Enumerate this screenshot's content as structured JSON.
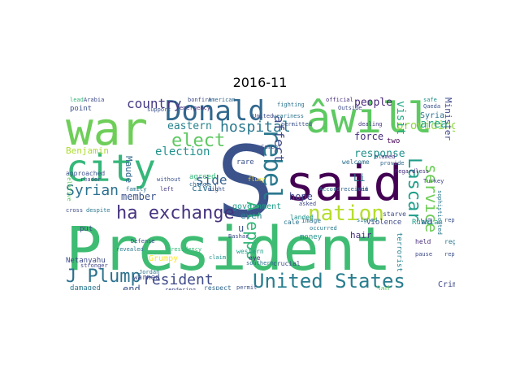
{
  "title": "2016-11",
  "words": [
    {
      "text": "President",
      "color": "#3fbc73"
    },
    {
      "text": "S",
      "color": "#3b528b"
    },
    {
      "text": "said",
      "color": "#440154"
    },
    {
      "text": "war",
      "color": "#6ece58"
    },
    {
      "text": "âwill",
      "color": "#5ec962"
    },
    {
      "text": "city",
      "color": "#35b779"
    },
    {
      "text": "Donald",
      "color": "#31688e"
    },
    {
      "text": "rebel",
      "color": "#2a788e"
    },
    {
      "text": "nation",
      "color": "#b5de2b"
    },
    {
      "text": "ha exchange",
      "color": "#46327e"
    },
    {
      "text": "United States",
      "color": "#287d8e"
    },
    {
      "text": "J Plump",
      "color": "#2c728e"
    },
    {
      "text": "resident",
      "color": "#3e4a89"
    },
    {
      "text": "hospital",
      "color": "#2a788e"
    },
    {
      "text": "Lascar",
      "color": "#1f9e89"
    },
    {
      "text": "service",
      "color": "#6ece58"
    },
    {
      "text": "Aleppo",
      "color": "#35b779"
    },
    {
      "text": "affect",
      "color": "#3e4a89"
    },
    {
      "text": "elect",
      "color": "#5ec962"
    },
    {
      "text": "country",
      "color": "#443983"
    },
    {
      "text": "Syrian",
      "color": "#2c728e"
    },
    {
      "text": "eastern",
      "color": "#26828e"
    },
    {
      "text": "election",
      "color": "#21918c"
    },
    {
      "text": "member",
      "color": "#3b528b"
    },
    {
      "text": "people",
      "color": "#482878"
    },
    {
      "text": "providing",
      "color": "#8fd744"
    },
    {
      "text": "visit",
      "color": "#22a884"
    },
    {
      "text": "response",
      "color": "#21918c"
    },
    {
      "text": "force",
      "color": "#472d7b"
    },
    {
      "text": "side",
      "color": "#355f8d"
    },
    {
      "text": "area",
      "color": "#20a486"
    },
    {
      "text": "Syria",
      "color": "#2c728e"
    },
    {
      "text": "Minister",
      "color": "#3e4a89"
    },
    {
      "text": "Benjamin",
      "color": "#addc30"
    },
    {
      "text": "Maude",
      "color": "#31688e"
    },
    {
      "text": "government",
      "color": "#1f9e89"
    },
    {
      "text": "hope",
      "color": "#414487"
    },
    {
      "text": "even",
      "color": "#26828e"
    },
    {
      "text": "wa",
      "color": "#3b528b"
    },
    {
      "text": "Crime",
      "color": "#3e4a89"
    },
    {
      "text": "brutal",
      "color": "#443983"
    },
    {
      "text": "Netanyahu",
      "color": "#3e4a89"
    },
    {
      "text": "Grumpy",
      "color": "#fde725"
    },
    {
      "text": "damaged",
      "color": "#2a788e"
    },
    {
      "text": "end",
      "color": "#3b528b"
    },
    {
      "text": "warned",
      "color": "#3e4a89"
    },
    {
      "text": "civil",
      "color": "#2c728e"
    },
    {
      "text": "agreed",
      "color": "#35b779"
    },
    {
      "text": "hair",
      "color": "#46327e"
    },
    {
      "text": "terrorist",
      "color": "#26828e"
    },
    {
      "text": "Russian",
      "color": "#1f9e89"
    },
    {
      "text": "violence",
      "color": "#3e4a89"
    },
    {
      "text": "image",
      "color": "#2c728e"
    },
    {
      "text": "landed",
      "color": "#21918c"
    },
    {
      "text": "rare",
      "color": "#3b528b"
    },
    {
      "text": "held",
      "color": "#472d7b"
    },
    {
      "text": "region",
      "color": "#2a788e"
    },
    {
      "text": "Sad",
      "color": "#5ec962"
    },
    {
      "text": "money",
      "color": "#21918c"
    },
    {
      "text": "Li",
      "color": "#2a788e"
    },
    {
      "text": "u",
      "color": "#3b528b"
    },
    {
      "text": "point",
      "color": "#3b528b"
    },
    {
      "text": "lead",
      "color": "#35b779"
    },
    {
      "text": "Arabia",
      "color": "#3e4a89"
    },
    {
      "text": "official",
      "color": "#472d7b"
    },
    {
      "text": "safe",
      "color": "#21918c"
    },
    {
      "text": "Qaeda",
      "color": "#3b528b"
    },
    {
      "text": "Turkey",
      "color": "#414487"
    },
    {
      "text": "fighting",
      "color": "#2c728e"
    },
    {
      "text": "Cement",
      "color": "#3e4a89"
    },
    {
      "text": "starve",
      "color": "#3e4a89"
    },
    {
      "text": "received",
      "color": "#31688e"
    },
    {
      "text": "Accord",
      "color": "#2a788e"
    },
    {
      "text": "blamed",
      "color": "#443983"
    },
    {
      "text": "Defense",
      "color": "#3b528b"
    },
    {
      "text": "Jordan",
      "color": "#2a788e"
    },
    {
      "text": "western",
      "color": "#1f9e89"
    },
    {
      "text": "southern",
      "color": "#2c728e"
    },
    {
      "text": "crucial",
      "color": "#3e4a89"
    },
    {
      "text": "eye",
      "color": "#472d7b"
    },
    {
      "text": "claim",
      "color": "#21918c"
    },
    {
      "text": "respect",
      "color": "#31688e"
    },
    {
      "text": "permit",
      "color": "#3b528b"
    },
    {
      "text": "rendering",
      "color": "#3e4a89"
    },
    {
      "text": "revealed",
      "color": "#2a788e"
    },
    {
      "text": "presidency",
      "color": "#35b779"
    },
    {
      "text": "stronger",
      "color": "#414487"
    },
    {
      "text": "put",
      "color": "#3e4a89"
    },
    {
      "text": "might",
      "color": "#3b528b"
    },
    {
      "text": "left",
      "color": "#443983"
    },
    {
      "text": "family",
      "color": "#2c728e"
    },
    {
      "text": "reader",
      "color": "#3e4a89"
    },
    {
      "text": "approached",
      "color": "#3b528b"
    },
    {
      "text": "relative",
      "color": "#5ec962"
    },
    {
      "text": "cross",
      "color": "#3e4a89"
    },
    {
      "text": "despite",
      "color": "#2a788e"
    },
    {
      "text": "without",
      "color": "#3b528b"
    },
    {
      "text": "change",
      "color": "#31688e"
    },
    {
      "text": "asked",
      "color": "#3e4a89"
    },
    {
      "text": "cale",
      "color": "#2c728e"
    },
    {
      "text": "occurred",
      "color": "#2a788e"
    },
    {
      "text": "support",
      "color": "#3b528b"
    },
    {
      "text": "bonfire",
      "color": "#3e4a89"
    },
    {
      "text": "American",
      "color": "#31688e"
    },
    {
      "text": "emergency",
      "color": "#472d7b"
    },
    {
      "text": "United",
      "color": "#3e4a89"
    },
    {
      "text": "weariness",
      "color": "#2c728e"
    },
    {
      "text": "permitted",
      "color": "#3b528b"
    },
    {
      "text": "Outside",
      "color": "#3e4a89"
    },
    {
      "text": "provide",
      "color": "#31688e"
    },
    {
      "text": "Regardless",
      "color": "#472d7b"
    },
    {
      "text": "signed",
      "color": "#2a788e"
    },
    {
      "text": "pause",
      "color": "#3e4a89"
    },
    {
      "text": "reported",
      "color": "#3b528b"
    },
    {
      "text": "proposal",
      "color": "#414487"
    },
    {
      "text": "cooperation",
      "color": "#2a788e"
    },
    {
      "text": "Damaging",
      "color": "#3e4a89"
    },
    {
      "text": "action",
      "color": "#31688e"
    },
    {
      "text": "embarrassed",
      "color": "#3b528b"
    },
    {
      "text": "dealing",
      "color": "#443983"
    },
    {
      "text": "welcome",
      "color": "#2c728e"
    },
    {
      "text": "min",
      "color": "#3e4a89"
    },
    {
      "text": "two",
      "color": "#440154"
    },
    {
      "text": "fluey",
      "color": "#fde725"
    },
    {
      "text": "Bashar",
      "color": "#3e4a89"
    },
    {
      "text": "sophisticated",
      "color": "#2a788e"
    },
    {
      "text": "replenishment",
      "color": "#3b528b"
    }
  ]
}
